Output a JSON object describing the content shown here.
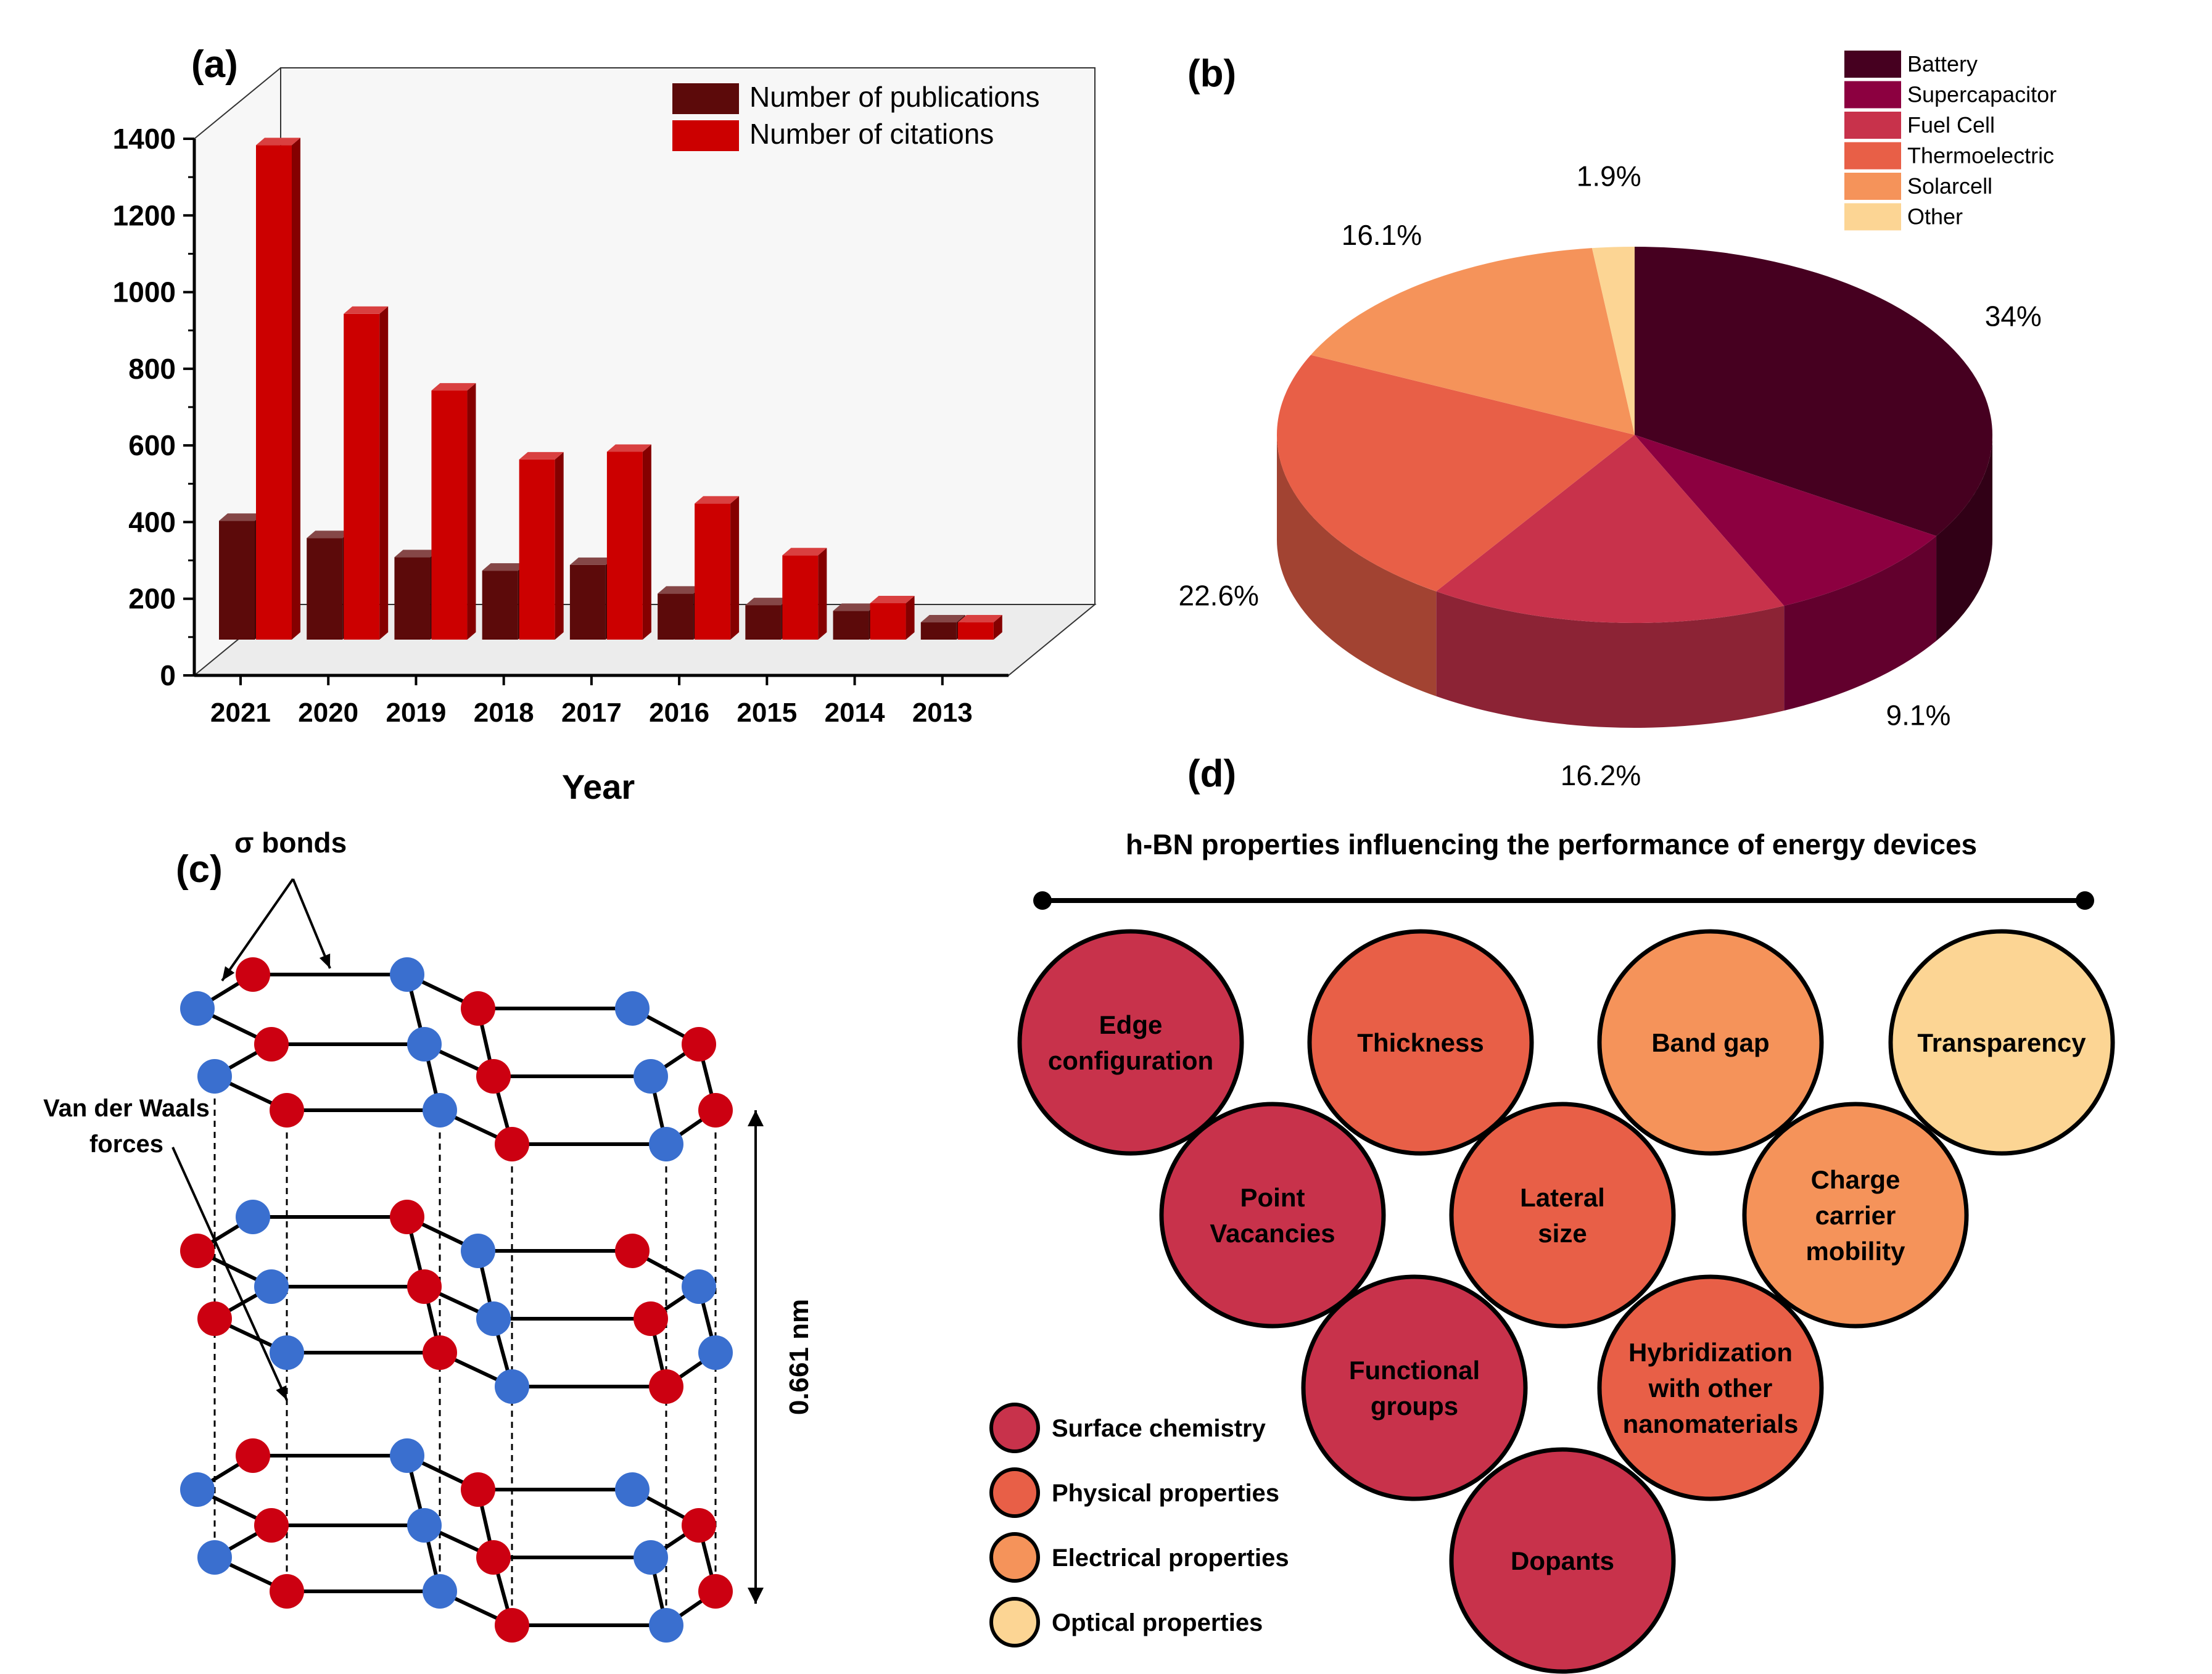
{
  "panel_labels": {
    "a": "(a)",
    "b": "(b)",
    "c": "(c)",
    "d": "(d)"
  },
  "chart_data": [
    {
      "type": "bar",
      "panel": "a",
      "categories": [
        "2021",
        "2020",
        "2019",
        "2018",
        "2017",
        "2016",
        "2015",
        "2014",
        "2013"
      ],
      "series": [
        {
          "name": "Number of publications",
          "color": "#5c0a0a",
          "values": [
            310,
            265,
            215,
            180,
            195,
            120,
            90,
            75,
            45
          ]
        },
        {
          "name": "Number of citations",
          "color": "#cc0000",
          "values": [
            1290,
            850,
            650,
            470,
            490,
            355,
            220,
            95,
            45
          ]
        }
      ],
      "y_ticks": [
        "0",
        "200",
        "400",
        "600",
        "800",
        "1000",
        "1200",
        "1400"
      ],
      "ylim": [
        0,
        1400
      ],
      "xlabel": "Year",
      "ylabel": "",
      "legend_position": "top-right"
    },
    {
      "type": "pie",
      "panel": "b",
      "slices": [
        {
          "label": "Battery",
          "value": 34,
          "value_label": "34%",
          "color": "#460020"
        },
        {
          "label": "Supercapacitor",
          "value": 9.1,
          "value_label": "9.1%",
          "color": "#8c0040"
        },
        {
          "label": "Fuel Cell",
          "value": 16.2,
          "value_label": "16.2%",
          "color": "#c8324b"
        },
        {
          "label": "Thermoelectric",
          "value": 22.6,
          "value_label": "22.6%",
          "color": "#e85f47"
        },
        {
          "label": "Solarcell",
          "value": 16.1,
          "value_label": "16.1%",
          "color": "#f5935a"
        },
        {
          "label": "Other",
          "value": 1.9,
          "value_label": "1.9%",
          "color": "#fcd594"
        }
      ],
      "legend_position": "top-right"
    }
  ],
  "structure": {
    "sigma_label": "σ bonds",
    "vdw_label_line1": "Van der Waals",
    "vdw_label_line2": "forces",
    "dimension": "0.661 nm",
    "atom_colors": {
      "red": "#cc0011",
      "blue": "#3a6fcf"
    }
  },
  "properties": {
    "title": "h-BN properties influencing the performance of energy devices",
    "categories": [
      {
        "name": "Surface chemistry",
        "color": "#c8324b"
      },
      {
        "name": "Physical properties",
        "color": "#e85f47"
      },
      {
        "name": "Electrical properties",
        "color": "#f5935a"
      },
      {
        "name": "Optical properties",
        "color": "#fcd594"
      }
    ],
    "bubbles": [
      {
        "lines": [
          "Edge",
          "configuration"
        ],
        "color": "#c8324b"
      },
      {
        "lines": [
          "Thickness"
        ],
        "color": "#e85f47"
      },
      {
        "lines": [
          "Band gap"
        ],
        "color": "#f5935a"
      },
      {
        "lines": [
          "Transparency"
        ],
        "color": "#fcd594"
      },
      {
        "lines": [
          "Point",
          "Vacancies"
        ],
        "color": "#c8324b"
      },
      {
        "lines": [
          "Lateral",
          "size"
        ],
        "color": "#e85f47"
      },
      {
        "lines": [
          "Charge",
          "carrier",
          "mobility"
        ],
        "color": "#f5935a"
      },
      {
        "lines": [
          "Functional",
          "groups"
        ],
        "color": "#c8324b"
      },
      {
        "lines": [
          "Hybridization",
          "with other",
          "nanomaterials"
        ],
        "color": "#e85f47"
      },
      {
        "lines": [
          "Dopants"
        ],
        "color": "#c8324b"
      }
    ]
  }
}
